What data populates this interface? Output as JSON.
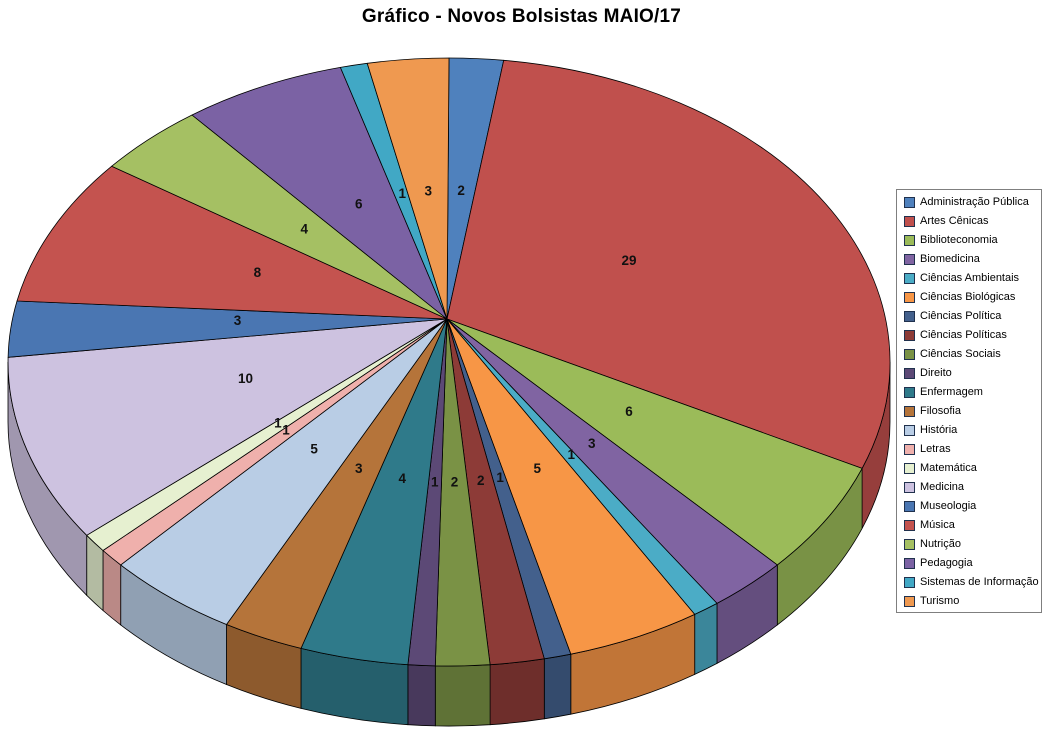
{
  "title": "Gráfico - Novos Bolsistas MAIO/17",
  "chart_data": {
    "type": "pie",
    "style": "3d-pie",
    "title": "Gráfico - Novos Bolsistas MAIO/17",
    "total": 101,
    "start_angle_deg": 0,
    "direction": "clockwise",
    "data_labels": "values",
    "legend_position": "right",
    "categories": [
      "Administração Pública",
      "Artes Cênicas",
      "Biblioteconomia",
      "Biomedicina",
      "Ciências Ambientais",
      "Ciências Biológicas",
      "Ciências Política",
      "Ciências Políticas",
      "Ciências Sociais",
      "Direito",
      "Enfermagem",
      "Filosofia",
      "História",
      "Letras",
      "Matemática",
      "Medicina",
      "Museologia",
      "Música",
      "Nutrição",
      "Pedagogia",
      "Sistemas de Informação",
      "Turismo"
    ],
    "values": [
      2,
      29,
      6,
      3,
      1,
      5,
      1,
      2,
      2,
      1,
      4,
      3,
      5,
      1,
      1,
      10,
      3,
      8,
      4,
      6,
      1,
      3
    ],
    "colors": [
      "#4F81BD",
      "#C0504D",
      "#9BBB59",
      "#8064A2",
      "#4BACC6",
      "#F79646",
      "#43608C",
      "#8D3B37",
      "#7A9245",
      "#5C4976",
      "#2F7A8A",
      "#B5743A",
      "#B9CDE5",
      "#EFB0AC",
      "#E6F0D0",
      "#CDC2E0",
      "#4A76B2",
      "#C4534F",
      "#A5C063",
      "#7B62A4",
      "#41A8C5",
      "#EF9950"
    ]
  }
}
